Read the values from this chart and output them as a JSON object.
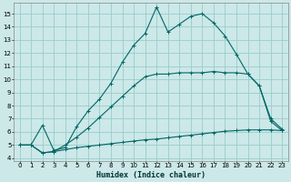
{
  "xlabel": "Humidex (Indice chaleur)",
  "background_color": "#cce8e8",
  "grid_color": "#99cccc",
  "line_color": "#006666",
  "xlim": [
    -0.5,
    23.5
  ],
  "ylim": [
    3.8,
    15.8
  ],
  "x_ticks": [
    0,
    1,
    2,
    3,
    4,
    5,
    6,
    7,
    8,
    9,
    10,
    11,
    12,
    13,
    14,
    15,
    16,
    17,
    18,
    19,
    20,
    21,
    22,
    23
  ],
  "y_ticks": [
    4,
    5,
    6,
    7,
    8,
    9,
    10,
    11,
    12,
    13,
    14,
    15
  ],
  "line1_x": [
    0,
    1,
    2,
    3,
    4,
    5,
    6,
    7,
    8,
    9,
    10,
    11,
    12,
    13,
    14,
    15,
    16,
    17,
    18,
    19,
    20,
    21,
    22,
    23
  ],
  "line1_y": [
    5.0,
    5.0,
    4.4,
    4.5,
    4.65,
    4.8,
    4.9,
    5.0,
    5.1,
    5.2,
    5.3,
    5.4,
    5.45,
    5.55,
    5.65,
    5.75,
    5.85,
    5.95,
    6.05,
    6.1,
    6.15,
    6.15,
    6.15,
    6.1
  ],
  "line2_x": [
    0,
    1,
    2,
    3,
    4,
    5,
    6,
    7,
    8,
    9,
    10,
    11,
    12,
    13,
    14,
    15,
    16,
    17,
    18,
    19,
    20,
    21,
    22,
    23
  ],
  "line2_y": [
    5.0,
    5.0,
    4.4,
    4.5,
    5.0,
    5.6,
    6.3,
    7.1,
    7.9,
    8.7,
    9.5,
    10.2,
    10.4,
    10.4,
    10.5,
    10.5,
    10.5,
    10.6,
    10.5,
    10.5,
    10.4,
    9.5,
    6.8,
    6.1
  ],
  "line3_x": [
    0,
    1,
    2,
    3,
    4,
    5,
    6,
    7,
    8,
    9,
    10,
    11,
    12,
    13,
    14,
    15,
    16,
    17,
    18,
    19,
    20,
    21,
    22,
    23
  ],
  "line3_y": [
    5.0,
    5.0,
    6.5,
    4.6,
    4.8,
    6.4,
    7.6,
    8.5,
    9.7,
    11.3,
    12.6,
    13.5,
    15.5,
    13.6,
    14.2,
    14.8,
    15.0,
    14.3,
    13.3,
    11.9,
    10.4,
    9.5,
    7.0,
    6.2
  ]
}
